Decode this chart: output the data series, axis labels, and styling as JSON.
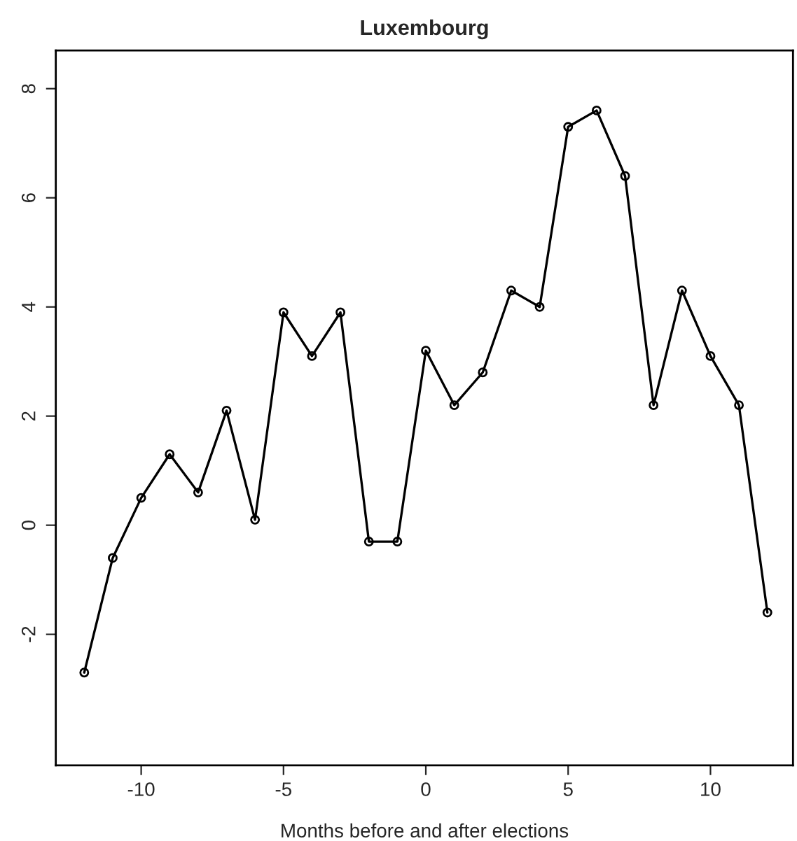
{
  "chart_data": {
    "type": "line",
    "title": "Luxembourg",
    "xlabel": "Months before and after elections",
    "x": [
      -12,
      -11,
      -10,
      -9,
      -8,
      -7,
      -6,
      -5,
      -4,
      -3,
      -2,
      -1,
      0,
      1,
      2,
      3,
      4,
      5,
      6,
      7,
      8,
      9,
      10,
      11,
      12
    ],
    "series": [
      {
        "color": "#000000",
        "values": [
          -2.7,
          -0.6,
          0.5,
          1.3,
          0.6,
          2.1,
          0.1,
          3.9,
          3.1,
          3.9,
          -0.3,
          -0.3,
          3.2,
          2.2,
          2.8,
          4.3,
          4.0,
          7.3,
          7.6,
          6.4,
          2.2,
          4.3,
          3.1,
          2.2,
          -1.6
        ]
      }
    ],
    "xlim": [
      -13,
      12.9
    ],
    "ylim": [
      -4.4,
      8.7
    ],
    "xticks": [
      -10,
      -5,
      0,
      5,
      10
    ],
    "yticks": [
      -2,
      0,
      2,
      4,
      6,
      8
    ],
    "marker": "circle",
    "line_style": "solid",
    "grid": false,
    "legend": false
  }
}
